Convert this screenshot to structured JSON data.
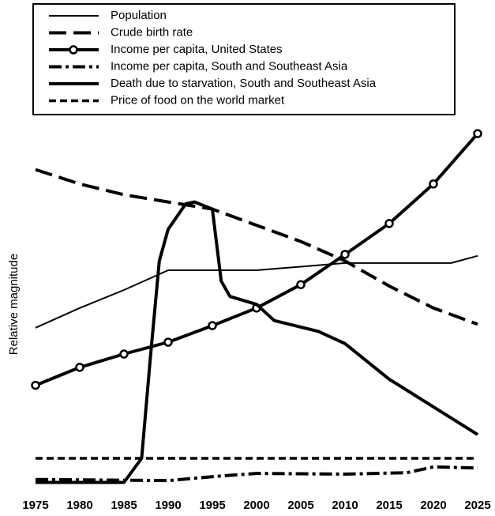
{
  "chart_data": {
    "type": "line",
    "y_label": "Relative magnitude",
    "xlim": [
      1975,
      2025
    ],
    "xticks": [
      1975,
      1980,
      1985,
      1990,
      1995,
      2000,
      2005,
      2010,
      2015,
      2020,
      2025
    ],
    "ylim": [
      0,
      100
    ],
    "series": [
      {
        "name": "Population",
        "color": "#000",
        "linestyle": "thin",
        "x": [
          1975,
          1980,
          1985,
          1990,
          2000,
          2010,
          2022,
          2025
        ],
        "values": [
          44,
          49.5,
          54.5,
          60,
          60,
          62,
          62,
          64
        ]
      },
      {
        "name": "Crude birth rate",
        "color": "#000",
        "linestyle": "longdash",
        "x": [
          1975,
          1980,
          1985,
          1990,
          1995,
          2000,
          2005,
          2010,
          2015,
          2020,
          2025
        ],
        "values": [
          88,
          84,
          81,
          79,
          77,
          72.5,
          68,
          62.6,
          55.6,
          49.5,
          45
        ]
      },
      {
        "name": "Income per capita, United States",
        "color": "#000",
        "linestyle": "circle",
        "x": [
          1975,
          1980,
          1985,
          1990,
          1995,
          2000,
          2005,
          2010,
          2015,
          2020,
          2025
        ],
        "values": [
          28,
          33,
          36.7,
          40,
          44.6,
          49.5,
          56,
          64.4,
          73,
          84,
          98
        ]
      },
      {
        "name": "Income per capita, South and Southeast Asia",
        "color": "#000",
        "linestyle": "dashdot",
        "x": [
          1975,
          1990,
          1995,
          2000,
          2010,
          2017,
          2020,
          2025
        ],
        "values": [
          1.8,
          1.5,
          2.6,
          3.5,
          3.3,
          3.7,
          5.3,
          5
        ]
      },
      {
        "name": "Death due to starvation, South and Southeast Asia",
        "color": "#000",
        "linestyle": "thick",
        "x": [
          1975,
          1985,
          1987,
          1988,
          1989,
          1990,
          1992,
          1993,
          1995,
          1996,
          1997,
          2000,
          2002,
          2007,
          2010,
          2015,
          2020,
          2025
        ],
        "values": [
          1,
          1,
          7.7,
          36,
          62.6,
          71.4,
          78.5,
          79,
          77,
          57,
          52.7,
          50.5,
          46,
          43,
          39.6,
          29.7,
          22,
          14.3
        ]
      },
      {
        "name": "Price of food on the world market",
        "color": "#000",
        "linestyle": "shortdash",
        "x": [
          1975,
          2025
        ],
        "values": [
          7.7,
          7.7
        ]
      }
    ]
  }
}
